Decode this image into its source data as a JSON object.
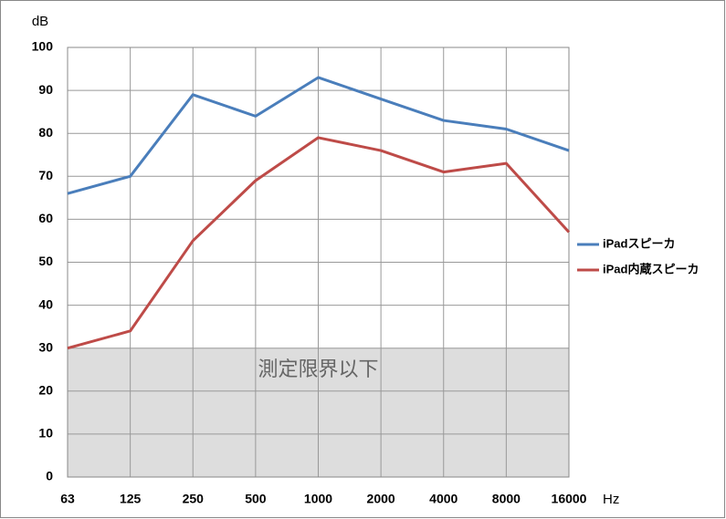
{
  "chart_data": {
    "type": "line",
    "y_label": "dB",
    "x_label": "Hz",
    "categories": [
      "63",
      "125",
      "250",
      "500",
      "1000",
      "2000",
      "4000",
      "8000",
      "16000"
    ],
    "series": [
      {
        "name": "iPadスピーカ",
        "color": "#4a7ebb",
        "values": [
          66,
          70,
          89,
          84,
          93,
          88,
          83,
          81,
          76
        ]
      },
      {
        "name": "iPad内蔵スピーカ",
        "color": "#be4b48",
        "values": [
          30,
          34,
          55,
          69,
          79,
          76,
          71,
          73,
          57
        ]
      }
    ],
    "ylim": [
      0,
      100
    ],
    "yticks": [
      0,
      10,
      20,
      30,
      40,
      50,
      60,
      70,
      80,
      90,
      100
    ],
    "grid": true,
    "legend": "right",
    "shaded_region": {
      "from": 0,
      "to": 30,
      "color": "#dddddd",
      "label": "測定限界以下"
    }
  }
}
